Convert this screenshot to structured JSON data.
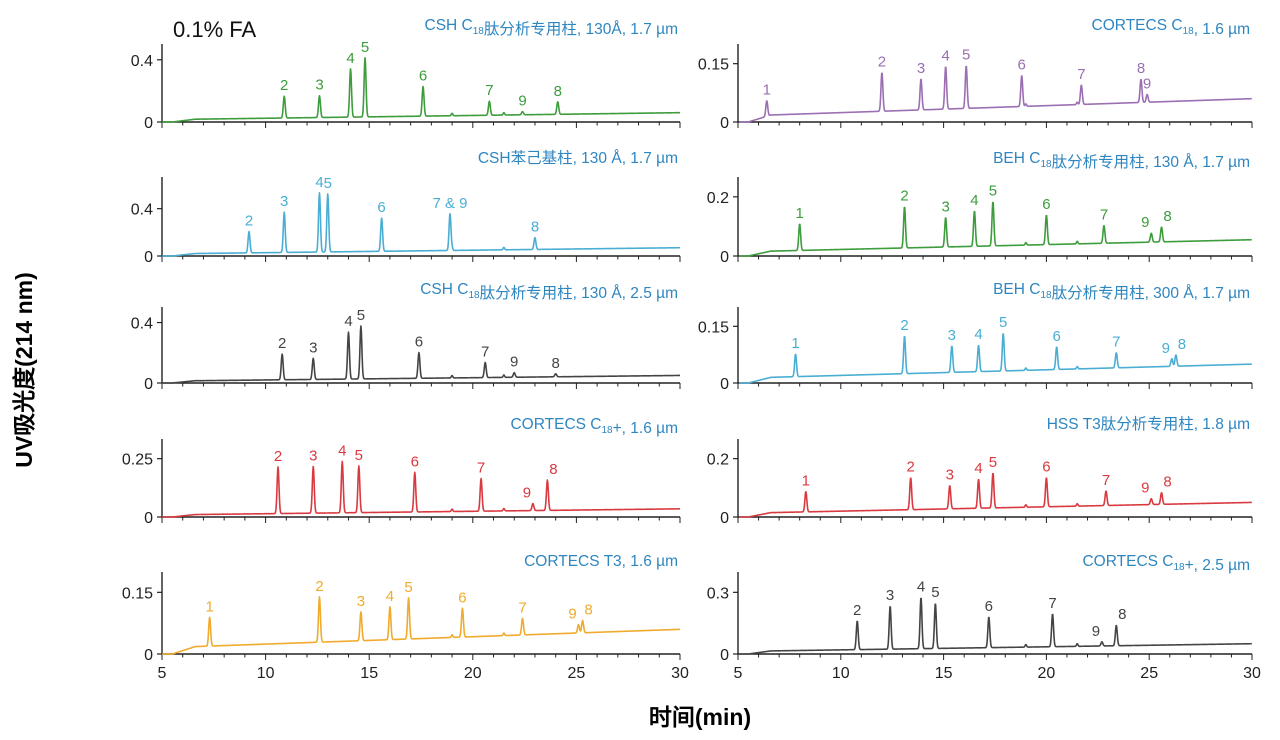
{
  "figure": {
    "ylabel": "UV吸光度(214 nm)",
    "xlabel": "时间(min)",
    "condition": "0.1% FA"
  },
  "chart_data": [
    {
      "type": "line",
      "column": "left",
      "row": 0,
      "color": "#3d9c3c",
      "title_parts": [
        {
          "t": "CSH C"
        },
        {
          "t": "18",
          "sub": true
        },
        {
          "t": "肽分析专用柱, 130Å, 1.7 µm"
        }
      ],
      "xlim": [
        5,
        30
      ],
      "ylim": [
        0,
        0.45
      ],
      "yticks": [
        0,
        0.4
      ],
      "xticks": [],
      "baseline": {
        "start": 0.0,
        "end": 0.06
      },
      "peaks": [
        {
          "label": "2",
          "rt": 10.9,
          "h": 0.14
        },
        {
          "label": "3",
          "rt": 12.6,
          "h": 0.14
        },
        {
          "label": "4",
          "rt": 14.1,
          "h": 0.31
        },
        {
          "label": "5",
          "rt": 14.8,
          "h": 0.38
        },
        {
          "label": "6",
          "rt": 17.6,
          "h": 0.19
        },
        {
          "label": "7",
          "rt": 20.8,
          "h": 0.09
        },
        {
          "label": "9",
          "rt": 22.4,
          "h": 0.02
        },
        {
          "label": "8",
          "rt": 24.1,
          "h": 0.08
        }
      ]
    },
    {
      "type": "line",
      "column": "left",
      "row": 1,
      "color": "#4aaed4",
      "title_parts": [
        {
          "t": "CSH苯己基柱, 130 Å, 1.7 µm"
        }
      ],
      "xlim": [
        5,
        30
      ],
      "ylim": [
        0,
        0.6
      ],
      "yticks": [
        0,
        0.4
      ],
      "xticks": [],
      "baseline": {
        "start": 0.0,
        "end": 0.07
      },
      "peaks": [
        {
          "label": "2",
          "rt": 9.2,
          "h": 0.18
        },
        {
          "label": "3",
          "rt": 10.9,
          "h": 0.34
        },
        {
          "label": "4",
          "rt": 12.6,
          "h": 0.5
        },
        {
          "label": "5",
          "rt": 13.0,
          "h": 0.49
        },
        {
          "label": "6",
          "rt": 15.6,
          "h": 0.28
        },
        {
          "label": "7 & 9",
          "rt": 18.9,
          "h": 0.31
        },
        {
          "label": "8",
          "rt": 23.0,
          "h": 0.1
        }
      ]
    },
    {
      "type": "line",
      "column": "left",
      "row": 2,
      "color": "#444444",
      "title_parts": [
        {
          "t": "CSH C"
        },
        {
          "t": "18",
          "sub": true
        },
        {
          "t": "肽分析专用柱, 130 Å, 2.5 µm"
        }
      ],
      "xlim": [
        5,
        30
      ],
      "ylim": [
        0,
        0.45
      ],
      "yticks": [
        0,
        0.4
      ],
      "xticks": [],
      "baseline": {
        "start": 0.0,
        "end": 0.05
      },
      "peaks": [
        {
          "label": "2",
          "rt": 10.8,
          "h": 0.17
        },
        {
          "label": "3",
          "rt": 12.3,
          "h": 0.14
        },
        {
          "label": "4",
          "rt": 14.0,
          "h": 0.31
        },
        {
          "label": "5",
          "rt": 14.6,
          "h": 0.35
        },
        {
          "label": "6",
          "rt": 17.4,
          "h": 0.17
        },
        {
          "label": "7",
          "rt": 20.6,
          "h": 0.1
        },
        {
          "label": "9",
          "rt": 22.0,
          "h": 0.03
        },
        {
          "label": "8",
          "rt": 24.0,
          "h": 0.02
        }
      ]
    },
    {
      "type": "line",
      "column": "left",
      "row": 3,
      "color": "#d93a40",
      "title_parts": [
        {
          "t": "CORTECS C"
        },
        {
          "t": "18",
          "sub": true
        },
        {
          "t": "+, 1.6 µm"
        }
      ],
      "xlim": [
        5,
        30
      ],
      "ylim": [
        0,
        0.3
      ],
      "yticks": [
        0,
        0.25
      ],
      "xticks": [],
      "baseline": {
        "start": 0.0,
        "end": 0.035
      },
      "peaks": [
        {
          "label": "2",
          "rt": 10.6,
          "h": 0.2
        },
        {
          "label": "3",
          "rt": 12.3,
          "h": 0.2
        },
        {
          "label": "4",
          "rt": 13.7,
          "h": 0.22
        },
        {
          "label": "5",
          "rt": 14.5,
          "h": 0.2
        },
        {
          "label": "6",
          "rt": 17.2,
          "h": 0.17
        },
        {
          "label": "7",
          "rt": 20.4,
          "h": 0.14
        },
        {
          "label": "9",
          "rt": 22.9,
          "h": 0.03
        },
        {
          "label": "8",
          "rt": 23.6,
          "h": 0.13
        }
      ]
    },
    {
      "type": "line",
      "column": "left",
      "row": 4,
      "color": "#f0ab2c",
      "title_parts": [
        {
          "t": "CORTECS T3, 1.6 µm"
        }
      ],
      "xlim": [
        5,
        30
      ],
      "ylim": [
        0,
        0.18
      ],
      "yticks": [
        0,
        0.15
      ],
      "xticks": [
        5,
        10,
        15,
        20,
        25,
        30
      ],
      "baseline": {
        "start": 0.0,
        "end": 0.06
      },
      "peaks": [
        {
          "label": "1",
          "rt": 7.3,
          "h": 0.07
        },
        {
          "label": "2",
          "rt": 12.6,
          "h": 0.11
        },
        {
          "label": "3",
          "rt": 14.6,
          "h": 0.07
        },
        {
          "label": "4",
          "rt": 16.0,
          "h": 0.08
        },
        {
          "label": "5",
          "rt": 16.9,
          "h": 0.1
        },
        {
          "label": "6",
          "rt": 19.5,
          "h": 0.07
        },
        {
          "label": "7",
          "rt": 22.4,
          "h": 0.04
        },
        {
          "label": "9",
          "rt": 25.1,
          "h": 0.02
        },
        {
          "label": "8",
          "rt": 25.3,
          "h": 0.03
        }
      ]
    },
    {
      "type": "line",
      "column": "right",
      "row": 0,
      "color": "#9b6fb2",
      "title_parts": [
        {
          "t": "CORTECS C"
        },
        {
          "t": "18",
          "sub": true
        },
        {
          "t": ", 1.6 µm"
        }
      ],
      "xlim": [
        5,
        30
      ],
      "ylim": [
        0,
        0.18
      ],
      "yticks": [
        0,
        0.15
      ],
      "xticks": [],
      "baseline": {
        "start": 0.0,
        "end": 0.06
      },
      "peaks": [
        {
          "label": "1",
          "rt": 6.4,
          "h": 0.04
        },
        {
          "label": "2",
          "rt": 12.0,
          "h": 0.1
        },
        {
          "label": "3",
          "rt": 13.9,
          "h": 0.08
        },
        {
          "label": "4",
          "rt": 15.1,
          "h": 0.11
        },
        {
          "label": "5",
          "rt": 16.1,
          "h": 0.11
        },
        {
          "label": "6",
          "rt": 18.8,
          "h": 0.08
        },
        {
          "label": "7",
          "rt": 21.7,
          "h": 0.05
        },
        {
          "label": "8",
          "rt": 24.6,
          "h": 0.06
        },
        {
          "label": "9",
          "rt": 24.9,
          "h": 0.02
        }
      ]
    },
    {
      "type": "line",
      "column": "right",
      "row": 1,
      "color": "#3d9c3c",
      "title_parts": [
        {
          "t": "BEH C"
        },
        {
          "t": "18",
          "sub": true
        },
        {
          "t": "肽分析专用柱, 130 Å, 1.7 µm"
        }
      ],
      "xlim": [
        5,
        30
      ],
      "ylim": [
        0,
        0.24
      ],
      "yticks": [
        0,
        0.2
      ],
      "xticks": [],
      "baseline": {
        "start": 0.0,
        "end": 0.055
      },
      "peaks": [
        {
          "label": "1",
          "rt": 8.0,
          "h": 0.09
        },
        {
          "label": "2",
          "rt": 13.1,
          "h": 0.14
        },
        {
          "label": "3",
          "rt": 15.1,
          "h": 0.1
        },
        {
          "label": "4",
          "rt": 16.5,
          "h": 0.12
        },
        {
          "label": "5",
          "rt": 17.4,
          "h": 0.15
        },
        {
          "label": "6",
          "rt": 20.0,
          "h": 0.1
        },
        {
          "label": "7",
          "rt": 22.8,
          "h": 0.06
        },
        {
          "label": "9",
          "rt": 25.1,
          "h": 0.03
        },
        {
          "label": "8",
          "rt": 25.6,
          "h": 0.05
        }
      ]
    },
    {
      "type": "line",
      "column": "right",
      "row": 2,
      "color": "#4aaed4",
      "title_parts": [
        {
          "t": "BEH C"
        },
        {
          "t": "18",
          "sub": true
        },
        {
          "t": "肽分析专用柱, 300 Å, 1.7 µm"
        }
      ],
      "xlim": [
        5,
        30
      ],
      "ylim": [
        0,
        0.18
      ],
      "yticks": [
        0,
        0.15
      ],
      "xticks": [],
      "baseline": {
        "start": 0.0,
        "end": 0.05
      },
      "peaks": [
        {
          "label": "1",
          "rt": 7.8,
          "h": 0.06
        },
        {
          "label": "2",
          "rt": 13.1,
          "h": 0.1
        },
        {
          "label": "3",
          "rt": 15.4,
          "h": 0.07
        },
        {
          "label": "4",
          "rt": 16.7,
          "h": 0.07
        },
        {
          "label": "5",
          "rt": 17.9,
          "h": 0.1
        },
        {
          "label": "6",
          "rt": 20.5,
          "h": 0.06
        },
        {
          "label": "7",
          "rt": 23.4,
          "h": 0.04
        },
        {
          "label": "9",
          "rt": 26.1,
          "h": 0.02
        },
        {
          "label": "8",
          "rt": 26.3,
          "h": 0.03
        }
      ]
    },
    {
      "type": "line",
      "column": "right",
      "row": 3,
      "color": "#d93a40",
      "title_parts": [
        {
          "t": "HSS T3肽分析专用柱, 1.8 µm"
        }
      ],
      "xlim": [
        5,
        30
      ],
      "ylim": [
        0,
        0.24
      ],
      "yticks": [
        0,
        0.2
      ],
      "xticks": [],
      "baseline": {
        "start": 0.0,
        "end": 0.05
      },
      "peaks": [
        {
          "label": "1",
          "rt": 8.3,
          "h": 0.07
        },
        {
          "label": "2",
          "rt": 13.4,
          "h": 0.11
        },
        {
          "label": "3",
          "rt": 15.3,
          "h": 0.08
        },
        {
          "label": "4",
          "rt": 16.7,
          "h": 0.1
        },
        {
          "label": "5",
          "rt": 17.4,
          "h": 0.12
        },
        {
          "label": "6",
          "rt": 20.0,
          "h": 0.1
        },
        {
          "label": "7",
          "rt": 22.9,
          "h": 0.05
        },
        {
          "label": "9",
          "rt": 25.1,
          "h": 0.02
        },
        {
          "label": "8",
          "rt": 25.6,
          "h": 0.04
        }
      ]
    },
    {
      "type": "line",
      "column": "right",
      "row": 4,
      "color": "#444444",
      "title_parts": [
        {
          "t": "CORTECS C"
        },
        {
          "t": "18",
          "sub": true
        },
        {
          "t": "+, 2.5 µm"
        }
      ],
      "xlim": [
        5,
        30
      ],
      "ylim": [
        0,
        0.36
      ],
      "yticks": [
        0,
        0.3
      ],
      "xticks": [
        5,
        10,
        15,
        20,
        25,
        30
      ],
      "baseline": {
        "start": 0.0,
        "end": 0.05
      },
      "peaks": [
        {
          "label": "2",
          "rt": 10.8,
          "h": 0.14
        },
        {
          "label": "3",
          "rt": 12.4,
          "h": 0.21
        },
        {
          "label": "4",
          "rt": 13.9,
          "h": 0.25
        },
        {
          "label": "5",
          "rt": 14.6,
          "h": 0.22
        },
        {
          "label": "6",
          "rt": 17.2,
          "h": 0.15
        },
        {
          "label": "7",
          "rt": 20.3,
          "h": 0.16
        },
        {
          "label": "9",
          "rt": 22.7,
          "h": 0.02
        },
        {
          "label": "8",
          "rt": 23.4,
          "h": 0.1
        }
      ]
    }
  ]
}
